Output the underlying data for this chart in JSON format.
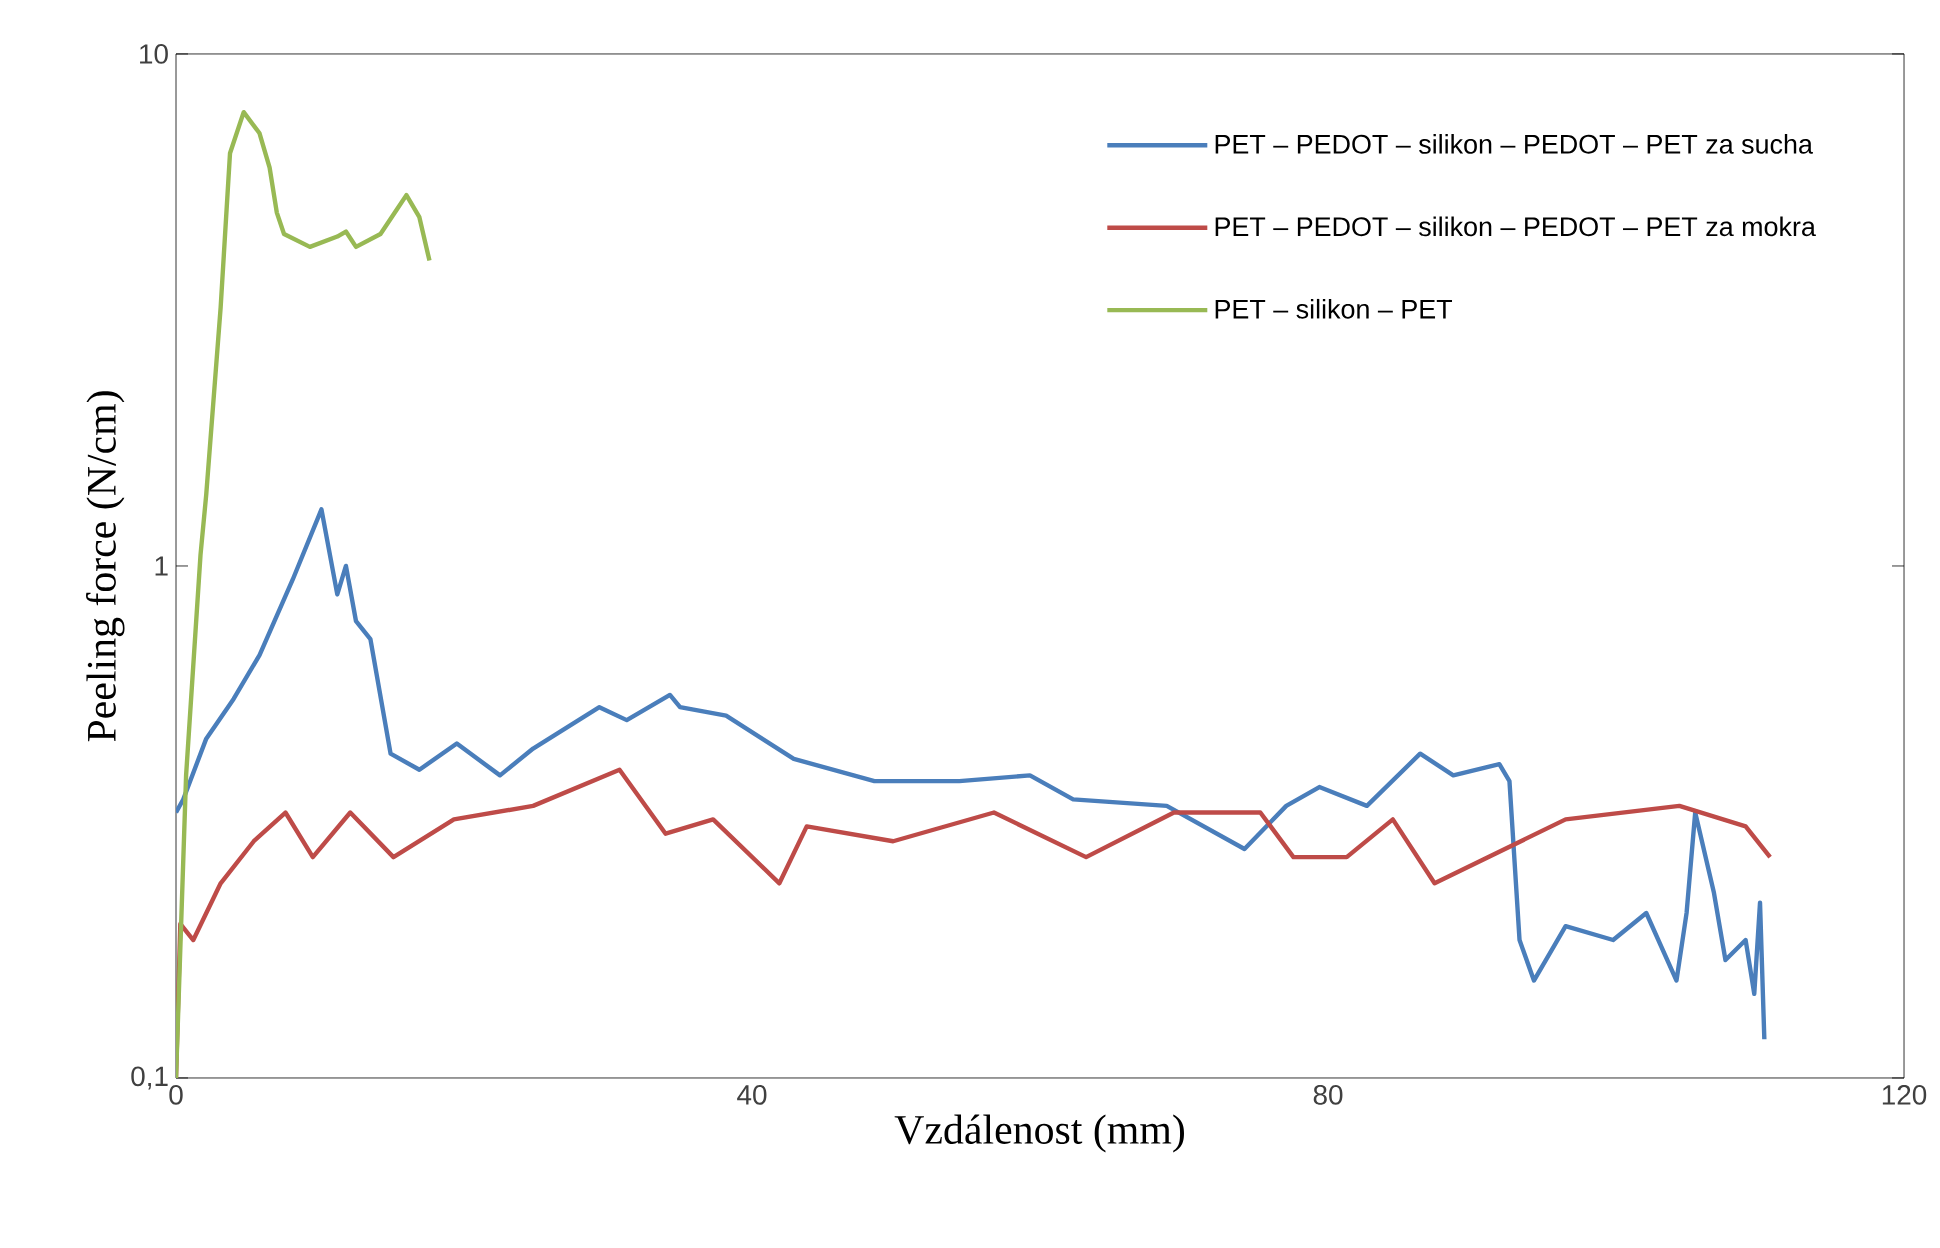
{
  "chart_data": {
    "type": "line",
    "xlabel": "Vzdálenost (mm)",
    "ylabel": "Peeling force (N/cm)",
    "log": "y",
    "xlim": [
      0,
      120
    ],
    "xticks": [
      0,
      40,
      80,
      120
    ],
    "ylim": [
      0.1,
      10
    ],
    "yticks": [
      {
        "value": 0.1,
        "label": "0,1"
      },
      {
        "value": 1,
        "label": "1"
      },
      {
        "value": 10,
        "label": "10"
      }
    ],
    "grid": false,
    "legend": "top right",
    "marker": "none",
    "line_style": "solid",
    "series": [
      {
        "name": "PET – PEDOT – silikon – PEDOT – PET za sucha",
        "color": "#4a7ebb",
        "x": [
          0,
          0.5,
          2.1,
          4.0,
          5.8,
          8.1,
          10.1,
          11.2,
          11.8,
          12.5,
          13.5,
          14.9,
          16.9,
          19.5,
          22.5,
          24.8,
          29.4,
          31.3,
          34.3,
          35,
          38.2,
          42.9,
          48.5,
          54.4,
          59.3,
          62.3,
          68.8,
          74.2,
          77.1,
          79.4,
          82.7,
          86.4,
          88.7,
          91.9,
          92.6,
          93.3,
          94.3,
          96.5,
          99.8,
          102.1,
          104.2,
          104.9,
          105.5,
          106.8,
          107.6,
          109.0,
          109.6,
          110.0,
          110.3
        ],
        "values": [
          0.33,
          0.35,
          0.46,
          0.55,
          0.67,
          0.94,
          1.29,
          0.88,
          1.0,
          0.78,
          0.72,
          0.43,
          0.4,
          0.45,
          0.39,
          0.44,
          0.53,
          0.5,
          0.56,
          0.53,
          0.51,
          0.42,
          0.38,
          0.38,
          0.39,
          0.35,
          0.34,
          0.28,
          0.34,
          0.37,
          0.34,
          0.43,
          0.39,
          0.41,
          0.38,
          0.186,
          0.155,
          0.198,
          0.186,
          0.21,
          0.155,
          0.21,
          0.33,
          0.23,
          0.17,
          0.186,
          0.146,
          0.22,
          0.119
        ]
      },
      {
        "name": "PET – PEDOT – silikon – PEDOT – PET za mokra",
        "color": "#be4b48",
        "x": [
          0,
          0.3,
          1.2,
          3.1,
          5.4,
          7.6,
          9.5,
          12.1,
          15.1,
          19.3,
          24.8,
          30.8,
          34.0,
          37.3,
          41.9,
          43.8,
          49.8,
          56.8,
          63.2,
          69.3,
          75.3,
          77.6,
          81.3,
          84.5,
          87.4,
          96.5,
          104.4,
          109.0,
          110.7
        ],
        "values": [
          0.1,
          0.2,
          0.186,
          0.24,
          0.29,
          0.33,
          0.27,
          0.33,
          0.27,
          0.32,
          0.34,
          0.4,
          0.3,
          0.32,
          0.24,
          0.31,
          0.29,
          0.33,
          0.27,
          0.33,
          0.33,
          0.27,
          0.27,
          0.32,
          0.24,
          0.32,
          0.34,
          0.31,
          0.27
        ]
      },
      {
        "name": "PET – silikon – PET",
        "color": "#98b954",
        "x": [
          0,
          0.7,
          1.7,
          2.1,
          3.1,
          3.75,
          4.7,
          5.8,
          6.5,
          7.0,
          7.5,
          9.3,
          11.2,
          11.8,
          12.5,
          14.2,
          15.3,
          16.0,
          16.9,
          17.6
        ],
        "values": [
          0.1,
          0.39,
          1.05,
          1.38,
          3.2,
          6.4,
          7.7,
          7.0,
          6.0,
          4.9,
          4.45,
          4.2,
          4.4,
          4.5,
          4.2,
          4.45,
          4.95,
          5.3,
          4.8,
          3.95
        ]
      }
    ]
  }
}
